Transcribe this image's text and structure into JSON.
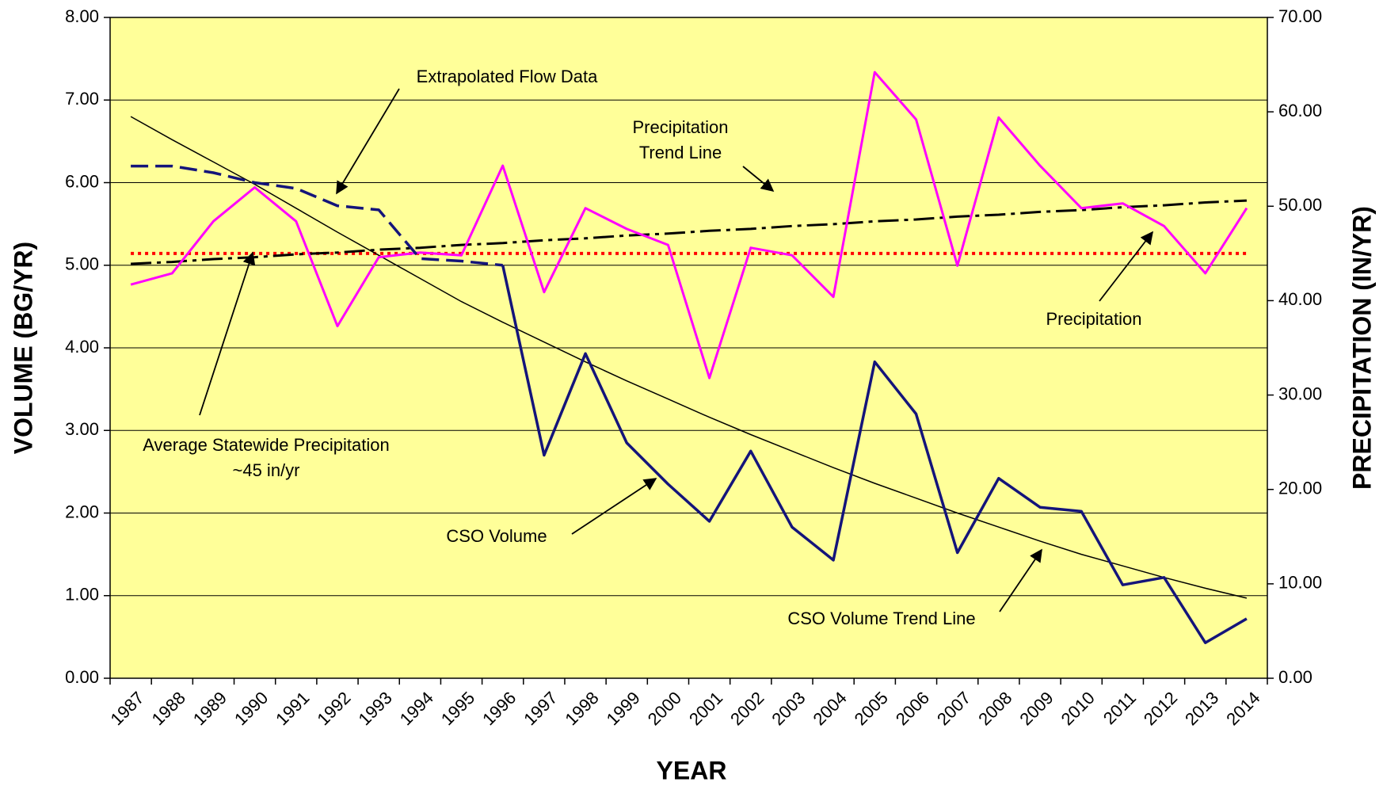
{
  "chart_data": {
    "type": "line",
    "x_label": "YEAR",
    "y_label": "VOLUME (BG/YR)",
    "y2_label": "PRECIPITATION (IN/YR)",
    "categories": [
      "1987",
      "1988",
      "1989",
      "1990",
      "1991",
      "1992",
      "1993",
      "1994",
      "1995",
      "1996",
      "1997",
      "1998",
      "1999",
      "2000",
      "2001",
      "2002",
      "2003",
      "2004",
      "2005",
      "2006",
      "2007",
      "2008",
      "2009",
      "2010",
      "2011",
      "2012",
      "2013",
      "2014"
    ],
    "ylim": [
      0,
      8
    ],
    "yticks": [
      {
        "value": 0,
        "label": "0.00"
      },
      {
        "value": 1,
        "label": "1.00"
      },
      {
        "value": 2,
        "label": "2.00"
      },
      {
        "value": 3,
        "label": "3.00"
      },
      {
        "value": 4,
        "label": "4.00"
      },
      {
        "value": 5,
        "label": "5.00"
      },
      {
        "value": 6,
        "label": "6.00"
      },
      {
        "value": 7,
        "label": "7.00"
      },
      {
        "value": 8,
        "label": "8.00"
      }
    ],
    "y2lim": [
      0,
      70
    ],
    "y2ticks": [
      {
        "value": 0,
        "label": "0.00"
      },
      {
        "value": 10,
        "label": "10.00"
      },
      {
        "value": 20,
        "label": "20.00"
      },
      {
        "value": 30,
        "label": "30.00"
      },
      {
        "value": 40,
        "label": "40.00"
      },
      {
        "value": 50,
        "label": "50.00"
      },
      {
        "value": 60,
        "label": "60.00"
      },
      {
        "value": 70,
        "label": "70.00"
      }
    ],
    "grid": true,
    "plot_background": "#ffff99",
    "series": [
      {
        "name": "CSO Volume",
        "color": "#14147a",
        "style": "solid",
        "width": 3.5,
        "values": [
          null,
          null,
          null,
          null,
          null,
          null,
          null,
          null,
          null,
          5.0,
          2.7,
          3.93,
          2.85,
          2.35,
          1.9,
          2.75,
          1.83,
          1.43,
          3.83,
          3.2,
          1.52,
          2.42,
          2.07,
          2.02,
          1.13,
          1.22,
          0.43,
          0.72
        ]
      },
      {
        "name": "Extrapolated Flow Data",
        "color": "#14147a",
        "style": "dashed",
        "width": 3.5,
        "values": [
          6.2,
          6.2,
          6.12,
          6.0,
          5.93,
          5.72,
          5.67,
          5.08,
          5.05,
          5.0,
          null,
          null,
          null,
          null,
          null,
          null,
          null,
          null,
          null,
          null,
          null,
          null,
          null,
          null,
          null,
          null,
          null,
          null
        ]
      },
      {
        "name": "Precipitation",
        "color": "#ff00ff",
        "style": "solid",
        "width": 3,
        "axis": "y2",
        "values": [
          41.7,
          42.9,
          48.4,
          52.0,
          48.4,
          37.3,
          44.6,
          45.1,
          44.8,
          54.3,
          40.9,
          49.8,
          47.6,
          45.9,
          31.8,
          45.6,
          44.8,
          40.4,
          64.2,
          59.2,
          43.7,
          59.4,
          54.3,
          49.8,
          50.3,
          47.9,
          42.9,
          49.8
        ]
      },
      {
        "name": [
          "Precipitation",
          "Trend Line"
        ],
        "color": "#000000",
        "style": "dashdot",
        "width": 3,
        "axis": "y2",
        "values": [
          43.9,
          44.1,
          44.4,
          44.6,
          44.9,
          45.1,
          45.4,
          45.6,
          45.9,
          46.1,
          46.4,
          46.6,
          46.9,
          47.1,
          47.4,
          47.6,
          47.9,
          48.1,
          48.4,
          48.6,
          48.9,
          49.1,
          49.4,
          49.6,
          49.9,
          50.1,
          50.4,
          50.6
        ]
      },
      {
        "name": "CSO Volume Trend Line",
        "color": "#000000",
        "style": "solid",
        "width": 1.5,
        "values": [
          6.8,
          6.52,
          6.25,
          5.98,
          5.69,
          5.4,
          5.12,
          4.84,
          4.56,
          4.31,
          4.07,
          3.83,
          3.6,
          3.38,
          3.16,
          2.95,
          2.75,
          2.55,
          2.36,
          2.18,
          2.0,
          1.83,
          1.66,
          1.5,
          1.36,
          1.22,
          1.09,
          0.97
        ]
      }
    ],
    "reference_line": {
      "name": [
        "Average Statewide Precipitation",
        "~45 in/yr"
      ],
      "value": 45,
      "axis": "y2",
      "color": "#ff0000",
      "style": "dotted"
    }
  }
}
